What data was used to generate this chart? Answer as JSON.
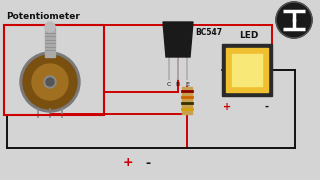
{
  "bg_color": "#d4d4d4",
  "title": "Potentiometer",
  "bc547_label": "BC547",
  "led_label": "LED",
  "plus_label": "+",
  "minus_label": "-",
  "led_plus": "+",
  "led_minus": "-",
  "red": "#cc0000",
  "black": "#111111",
  "white": "#ffffff",
  "pot_box_color": "#cc0000",
  "transistor_color": "#1a1a1a",
  "resistor_body": "#c8a050",
  "led_outer": "#2a2a2a",
  "led_inner": "#f0c030",
  "logo_bg": "#1a1a1a",
  "pot_body": "#8b6010",
  "pot_shaft": "#999999",
  "pin_color": "#b0b0b0"
}
